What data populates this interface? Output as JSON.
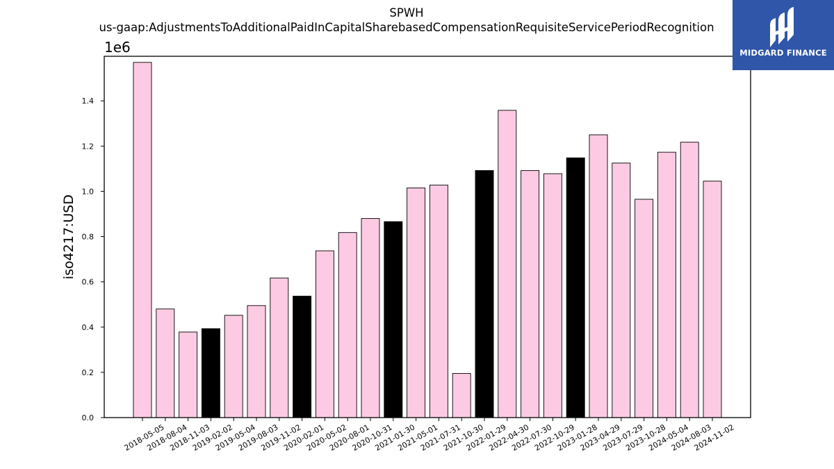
{
  "chart_data": {
    "type": "bar",
    "title": "SPWH",
    "subtitle": "us-gaap:AdjustmentsToAdditionalPaidInCapitalSharebasedCompensationRequisiteServicePeriodRecognition",
    "xlabel": "",
    "ylabel": "iso4217:USD",
    "y_offset_label": "1e6",
    "ylim": [
      0,
      1.6
    ],
    "yticks": [
      "0.0",
      "0.2",
      "0.4",
      "0.6",
      "0.8",
      "1.0",
      "1.2",
      "1.4"
    ],
    "grid": false,
    "categories": [
      "2018-05-05",
      "2018-08-04",
      "2018-11-03",
      "2019-02-02",
      "2019-05-04",
      "2019-08-03",
      "2019-11-02",
      "2020-02-01",
      "2020-05-02",
      "2020-08-01",
      "2020-10-31",
      "2021-01-30",
      "2021-05-01",
      "2021-07-31",
      "2021-10-30",
      "2022-01-29",
      "2022-04-30",
      "2022-07-30",
      "2022-10-29",
      "2023-01-28",
      "2023-04-29",
      "2023-07-29",
      "2023-10-28",
      "2024-05-04",
      "2024-08-03",
      "2024-11-02"
    ],
    "values": [
      1.57,
      0.48,
      0.378,
      0.393,
      0.452,
      0.495,
      0.617,
      0.537,
      0.737,
      0.818,
      0.88,
      0.866,
      1.015,
      1.028,
      0.195,
      1.092,
      1.358,
      1.092,
      1.078,
      1.148,
      1.25,
      1.125,
      0.965,
      1.173,
      1.217,
      1.045
    ],
    "bar_colors": [
      "#fccbe3",
      "#fccbe3",
      "#fccbe3",
      "#000000",
      "#fccbe3",
      "#fccbe3",
      "#fccbe3",
      "#000000",
      "#fccbe3",
      "#fccbe3",
      "#fccbe3",
      "#000000",
      "#fccbe3",
      "#fccbe3",
      "#fccbe3",
      "#000000",
      "#fccbe3",
      "#fccbe3",
      "#fccbe3",
      "#000000",
      "#fccbe3",
      "#fccbe3",
      "#fccbe3",
      "#fccbe3",
      "#fccbe3",
      "#fccbe3"
    ]
  },
  "logo": {
    "text": "MIDGARD FINANCE",
    "color": "#2f56a8"
  }
}
